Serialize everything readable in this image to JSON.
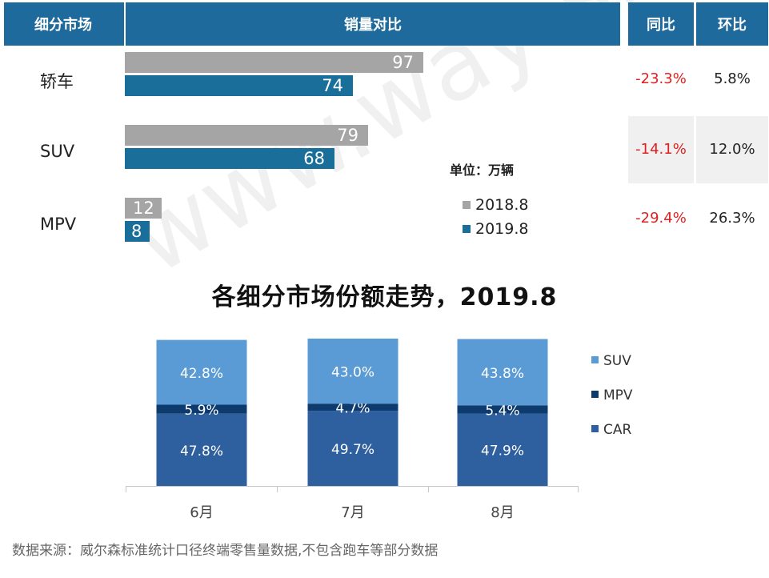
{
  "header": {
    "segment": "细分市场",
    "volume": "销量对比",
    "yoy": "同比",
    "mom": "环比"
  },
  "unit_label": "单位：万辆",
  "rows": [
    {
      "label": "轿车",
      "yoy": "-23.3%",
      "mom": "5.8%"
    },
    {
      "label": "SUV",
      "yoy": "-14.1%",
      "mom": "12.0%"
    },
    {
      "label": "MPV",
      "yoy": "-29.4%",
      "mom": "26.3%"
    }
  ],
  "chart2_title": "各细分市场份额走势，2019.8",
  "source": "数据来源：威尔森标准统计口径终端零售量数据,不包含跑车等部分数据",
  "watermark": "www.way-s.cn",
  "colors": {
    "header": "#1f6a9c",
    "gray_bar": "#a5a5a5",
    "blue_bar": "#1a6e9a",
    "suv": "#5b9bd5",
    "mpv": "#0e3b6e",
    "car": "#2e5f9e",
    "negative": "#e02020"
  },
  "chart_data": [
    {
      "type": "bar",
      "orientation": "horizontal",
      "categories": [
        "轿车",
        "SUV",
        "MPV"
      ],
      "series": [
        {
          "name": "2018.8",
          "values": [
            97,
            79,
            12
          ]
        },
        {
          "name": "2019.8",
          "values": [
            74,
            68,
            8
          ]
        }
      ],
      "xlim": [
        0,
        120
      ],
      "legend_position": "right"
    },
    {
      "type": "bar",
      "stacked": true,
      "title": "各细分市场份额走势，2019.8",
      "categories": [
        "6月",
        "7月",
        "8月"
      ],
      "series": [
        {
          "name": "CAR",
          "values": [
            47.8,
            49.7,
            47.9
          ]
        },
        {
          "name": "MPV",
          "values": [
            5.9,
            4.7,
            5.4
          ]
        },
        {
          "name": "SUV",
          "values": [
            42.8,
            43.0,
            43.8
          ]
        }
      ],
      "value_suffix": "%",
      "ylim": [
        0,
        100
      ],
      "legend_position": "right"
    }
  ]
}
